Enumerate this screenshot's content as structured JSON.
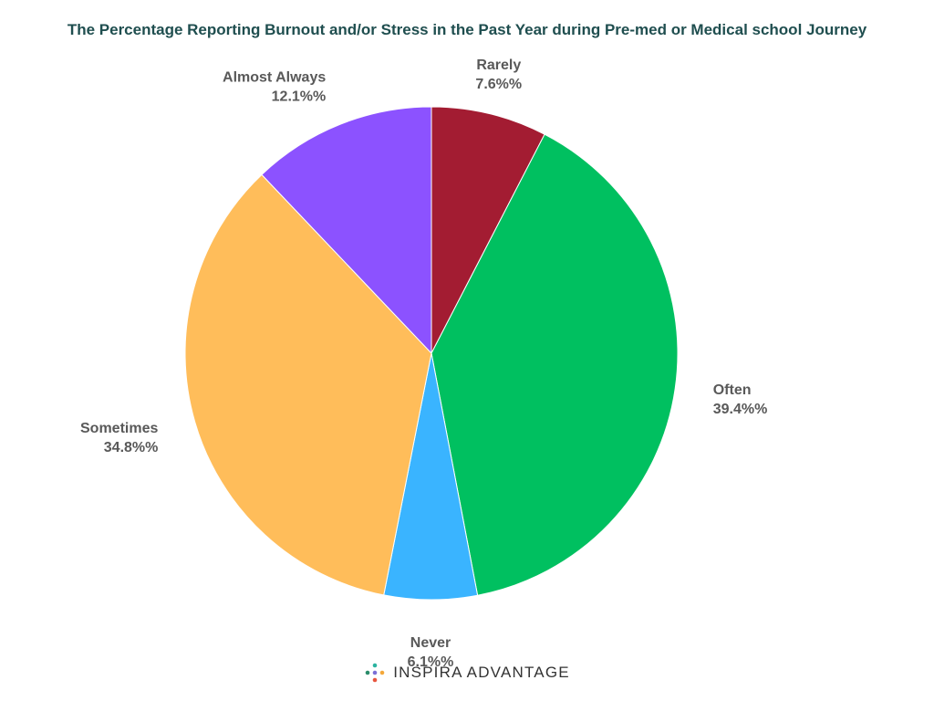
{
  "chart_data": {
    "type": "pie",
    "title": "The Percentage Reporting Burnout and/or Stress in the Past Year during Pre-med or Medical school Journey",
    "start_angle_deg": 0,
    "direction": "clockwise",
    "slices": [
      {
        "label": "Rarely",
        "value": 7.6,
        "value_label": "7.6%%",
        "color": "#a31c32"
      },
      {
        "label": "Often",
        "value": 39.4,
        "value_label": "39.4%%",
        "color": "#00c060"
      },
      {
        "label": "Never",
        "value": 6.1,
        "value_label": "6.1%%",
        "color": "#3ab4ff"
      },
      {
        "label": "Sometimes",
        "value": 34.8,
        "value_label": "34.8%%",
        "color": "#ffbd5a"
      },
      {
        "label": "Almost Always",
        "value": 12.1,
        "value_label": "12.1%%",
        "color": "#8c52ff"
      }
    ]
  },
  "brand": {
    "name": "INSPIRA ADVANTAGE",
    "logo_icon": "dots-logo-icon",
    "logo_colors": [
      "#2bb3a0",
      "#4aa3df",
      "#7b6fd6",
      "#f4a83a",
      "#e8543e",
      "#2a8c6a"
    ]
  }
}
